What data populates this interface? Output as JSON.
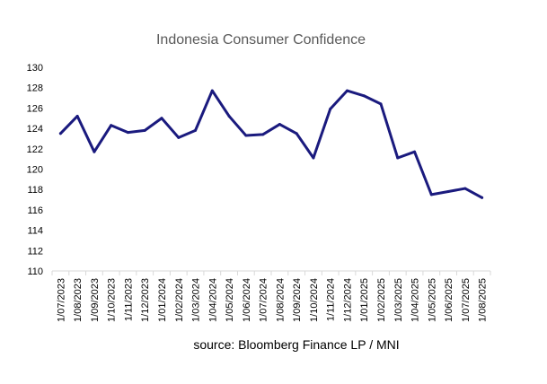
{
  "chart_data": {
    "type": "line",
    "title": "Indonesia Consumer Confidence",
    "source": "source: Bloomberg Finance LP / MNI",
    "xlabel": "",
    "ylabel": "",
    "ylim": [
      110,
      130
    ],
    "yticks": [
      "110",
      "112",
      "114",
      "116",
      "118",
      "120",
      "122",
      "124",
      "126",
      "128",
      "130"
    ],
    "grid": false,
    "legend": "none",
    "line_color": "#1a1a7e",
    "categories": [
      "1/07/2023",
      "1/08/2023",
      "1/09/2023",
      "1/10/2023",
      "1/11/2023",
      "1/12/2023",
      "1/01/2024",
      "1/02/2024",
      "1/03/2024",
      "1/04/2024",
      "1/05/2024",
      "1/06/2024",
      "1/07/2024",
      "1/08/2024",
      "1/09/2024",
      "1/10/2024",
      "1/11/2024",
      "1/12/2024",
      "1/01/2025",
      "1/02/2025",
      "1/03/2025",
      "1/04/2025",
      "1/05/2025",
      "1/06/2025",
      "1/07/2025",
      "1/08/2025"
    ],
    "series": [
      {
        "name": "Indonesia Consumer Confidence",
        "values": [
          123.5,
          125.2,
          121.7,
          124.3,
          123.6,
          123.8,
          125.0,
          123.1,
          123.8,
          127.7,
          125.2,
          123.3,
          123.4,
          124.4,
          123.5,
          121.1,
          125.9,
          127.7,
          127.2,
          126.4,
          121.1,
          121.7,
          117.5,
          117.8,
          118.1,
          117.2
        ]
      }
    ]
  }
}
